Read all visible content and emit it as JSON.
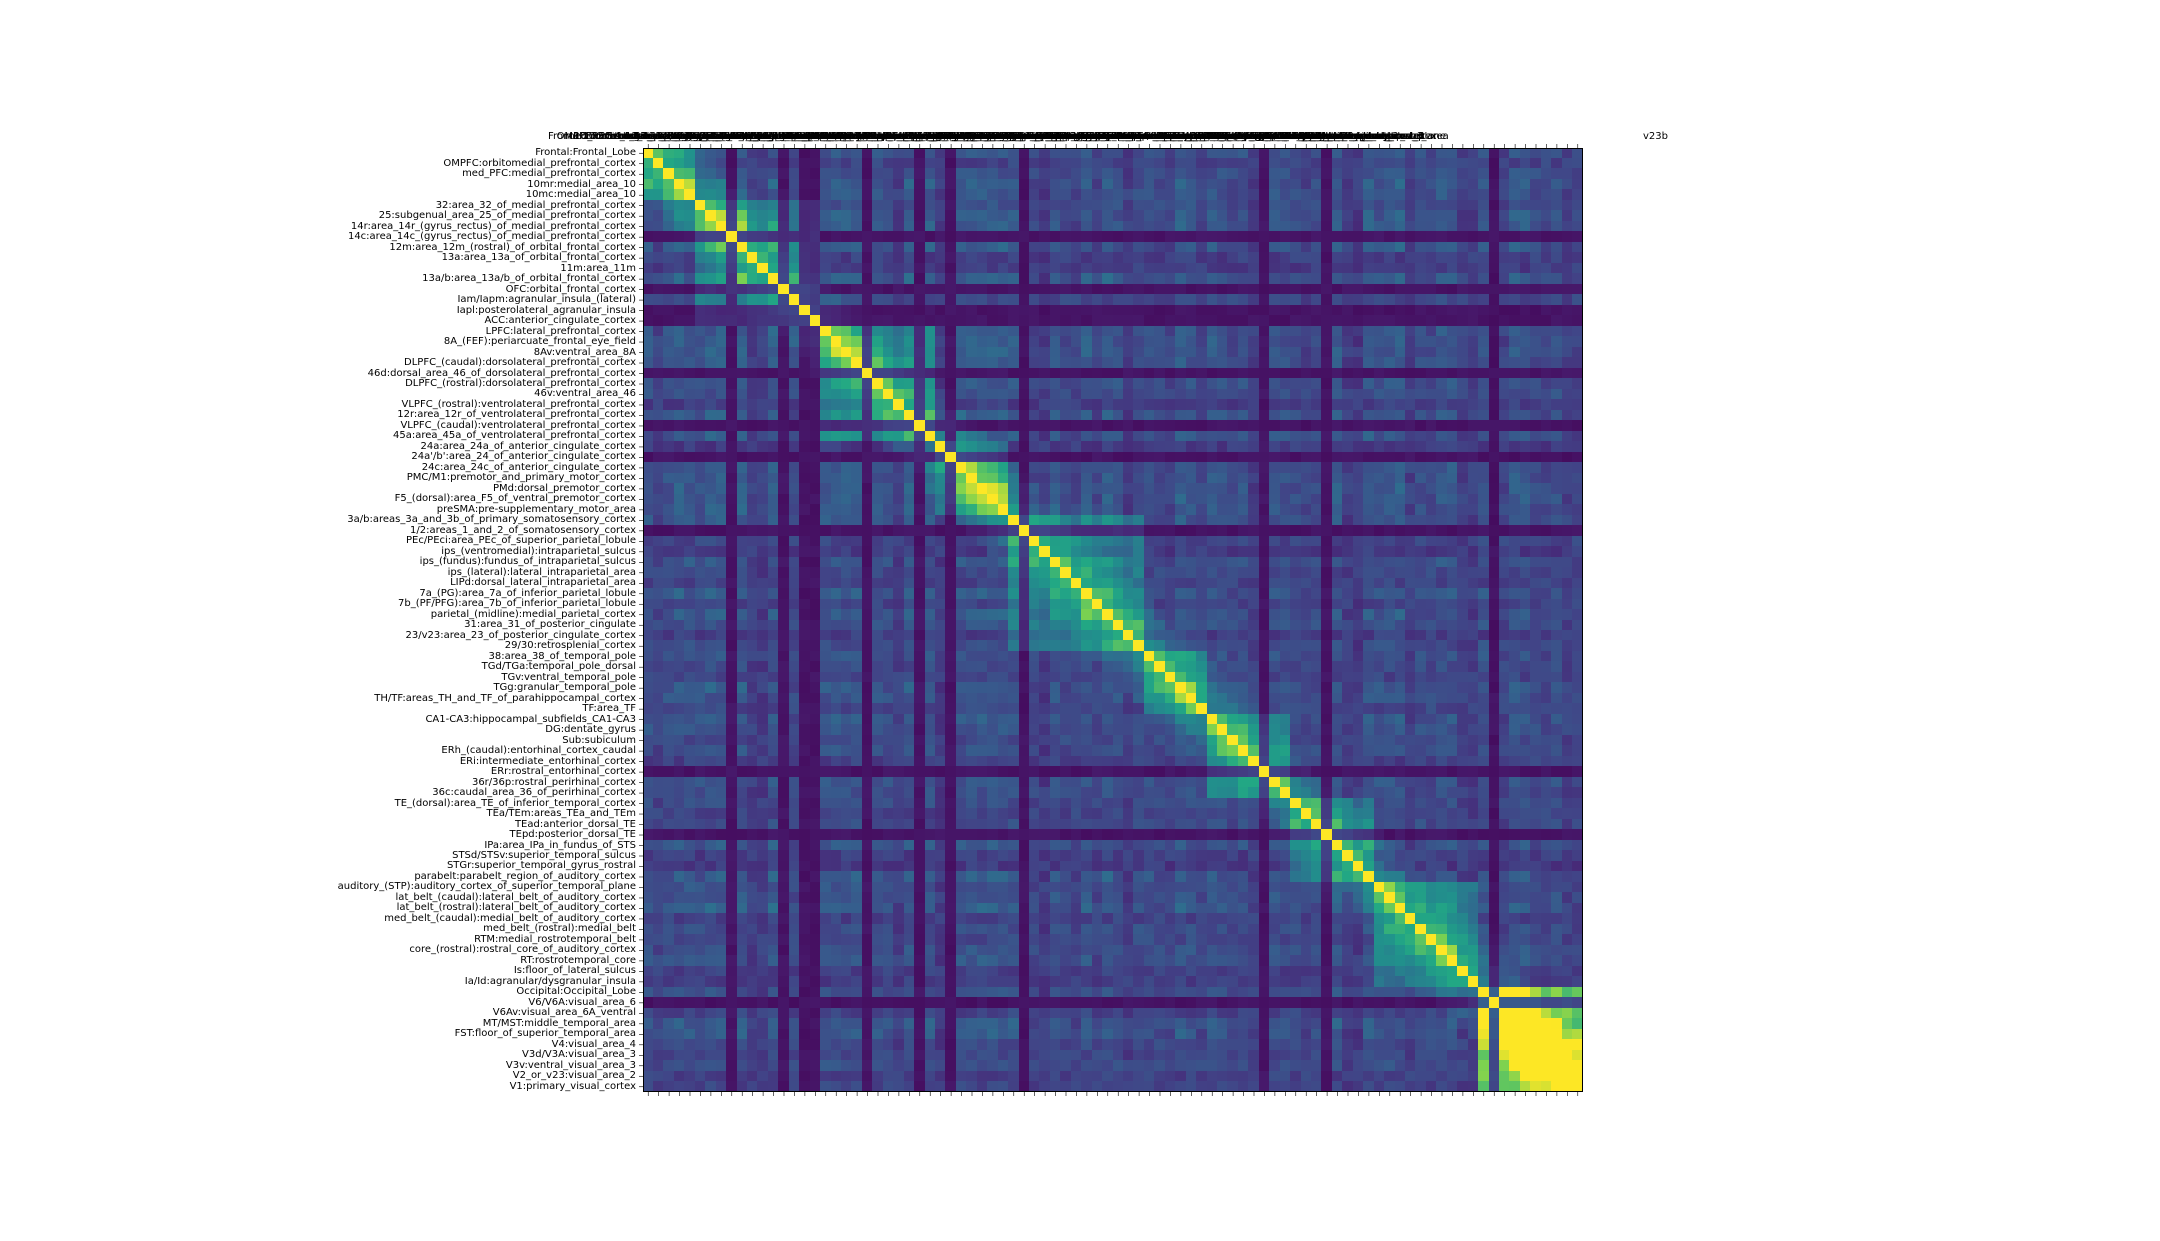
{
  "chart_data": {
    "type": "heatmap",
    "title": "",
    "xlabel": "",
    "ylabel": "",
    "colormap": "viridis",
    "colors": {
      "low": "#440154",
      "mid": "#21918c",
      "high": "#fde725"
    },
    "grid": false,
    "row_labels": [
      "Frontal:Frontal_Lobe",
      "OMPFC:orbitomedial_prefrontal_cortex",
      "med_PFC:medial_prefrontal_cortex",
      "10mr:medial_area_10",
      "10mc:medial_area_10",
      "32:area_32_of_medial_prefrontal_cortex",
      "25:subgenual_area_25_of_medial_prefrontal_cortex",
      "14r:area_14r_(gyrus_rectus)_of_medial_prefrontal_cortex",
      "14c:area_14c_(gyrus_rectus)_of_medial_prefrontal_cortex",
      "12m:area_12m_(rostral)_of_orbital_frontal_cortex",
      "13a:area_13a_of_orbital_frontal_cortex",
      "11m:area_11m",
      "13a/b:area_13a/b_of_orbital_frontal_cortex",
      "OFC:orbital_frontal_cortex",
      "Iam/Iapm:agranular_insula_(lateral)",
      "Iapl:posterolateral_agranular_insula",
      "ACC:anterior_cingulate_cortex",
      "LPFC:lateral_prefrontal_cortex",
      "8A_(FEF):periarcuate_frontal_eye_field",
      "8Av:ventral_area_8A",
      "DLPFC_(caudal):dorsolateral_prefrontal_cortex",
      "46d:dorsal_area_46_of_dorsolateral_prefrontal_cortex",
      "DLPFC_(rostral):dorsolateral_prefrontal_cortex",
      "46v:ventral_area_46",
      "VLPFC_(rostral):ventrolateral_prefrontal_cortex",
      "12r:area_12r_of_ventrolateral_prefrontal_cortex",
      "VLPFC_(caudal):ventrolateral_prefrontal_cortex",
      "45a:area_45a_of_ventrolateral_prefrontal_cortex",
      "24a:area_24a_of_anterior_cingulate_cortex",
      "24a'/b':area_24_of_anterior_cingulate_cortex",
      "24c:area_24c_of_anterior_cingulate_cortex",
      "PMC/M1:premotor_and_primary_motor_cortex",
      "PMd:dorsal_premotor_cortex",
      "F5_(dorsal):area_F5_of_ventral_premotor_cortex",
      "preSMA:pre-supplementary_motor_area",
      "3a/b:areas_3a_and_3b_of_primary_somatosensory_cortex",
      "1/2:areas_1_and_2_of_somatosensory_cortex",
      "PEc/PEci:area_PEc_of_superior_parietal_lobule",
      "ips_(ventromedial):intraparietal_sulcus",
      "ips_(fundus):fundus_of_intraparietal_sulcus",
      "ips_(lateral):lateral_intraparietal_area",
      "LIPd:dorsal_lateral_intraparietal_area",
      "7a_(PG):area_7a_of_inferior_parietal_lobule",
      "7b_(PF/PFG):area_7b_of_inferior_parietal_lobule",
      "parietal_(midline):medial_parietal_cortex",
      "31:area_31_of_posterior_cingulate",
      "23/v23:area_23_of_posterior_cingulate_cortex",
      "29/30:retrosplenial_cortex",
      "38:area_38_of_temporal_pole",
      "TGd/TGa:temporal_pole_dorsal",
      "TGv:ventral_temporal_pole",
      "TGg:granular_temporal_pole",
      "TH/TF:areas_TH_and_TF_of_parahippocampal_cortex",
      "TF:area_TF",
      "CA1-CA3:hippocampal_subfields_CA1-CA3",
      "DG:dentate_gyrus",
      "Sub:subiculum",
      "ERh_(caudal):entorhinal_cortex_caudal",
      "ERi:intermediate_entorhinal_cortex",
      "ERr:rostral_entorhinal_cortex",
      "36r/36p:rostral_perirhinal_cortex",
      "36c:caudal_area_36_of_perirhinal_cortex",
      "TE_(dorsal):area_TE_of_inferior_temporal_cortex",
      "TEa/TEm:areas_TEa_and_TEm",
      "TEad:anterior_dorsal_TE",
      "TEpd:posterior_dorsal_TE",
      "IPa:area_IPa_in_fundus_of_STS",
      "STSd/STSv:superior_temporal_sulcus",
      "STGr:superior_temporal_gyrus_rostral",
      "parabelt:parabelt_region_of_auditory_cortex",
      "auditory_(STP):auditory_cortex_of_superior_temporal_plane",
      "lat_belt_(caudal):lateral_belt_of_auditory_cortex",
      "lat_belt_(rostral):lateral_belt_of_auditory_cortex",
      "med_belt_(caudal):medial_belt_of_auditory_cortex",
      "med_belt_(rostral):medial_belt",
      "RTM:medial_rostrotemporal_belt",
      "core_(rostral):rostral_core_of_auditory_cortex",
      "RT:rostrotemporal_core",
      "Is:floor_of_lateral_sulcus",
      "Ia/Id:agranular/dysgranular_insula",
      "Occipital:Occipital_Lobe",
      "V6/V6A:visual_area_6",
      "V6Av:visual_area_6A_ventral",
      "MT/MST:middle_temporal_area",
      "FST:floor_of_superior_temporal_area",
      "V4:visual_area_4",
      "V3d/V3A:visual_area_3",
      "V3v:ventral_visual_area_3",
      "V2_or_v23:visual_area_2",
      "V1:primary_visual_cortex"
    ],
    "xtick_label_last": "v23b",
    "matrix_size": 90,
    "value_range": [
      0,
      1
    ],
    "diagonal_value": 1.0,
    "block_boundaries": [
      0,
      5,
      17,
      28,
      35,
      48,
      54,
      62,
      70,
      80,
      90
    ]
  }
}
